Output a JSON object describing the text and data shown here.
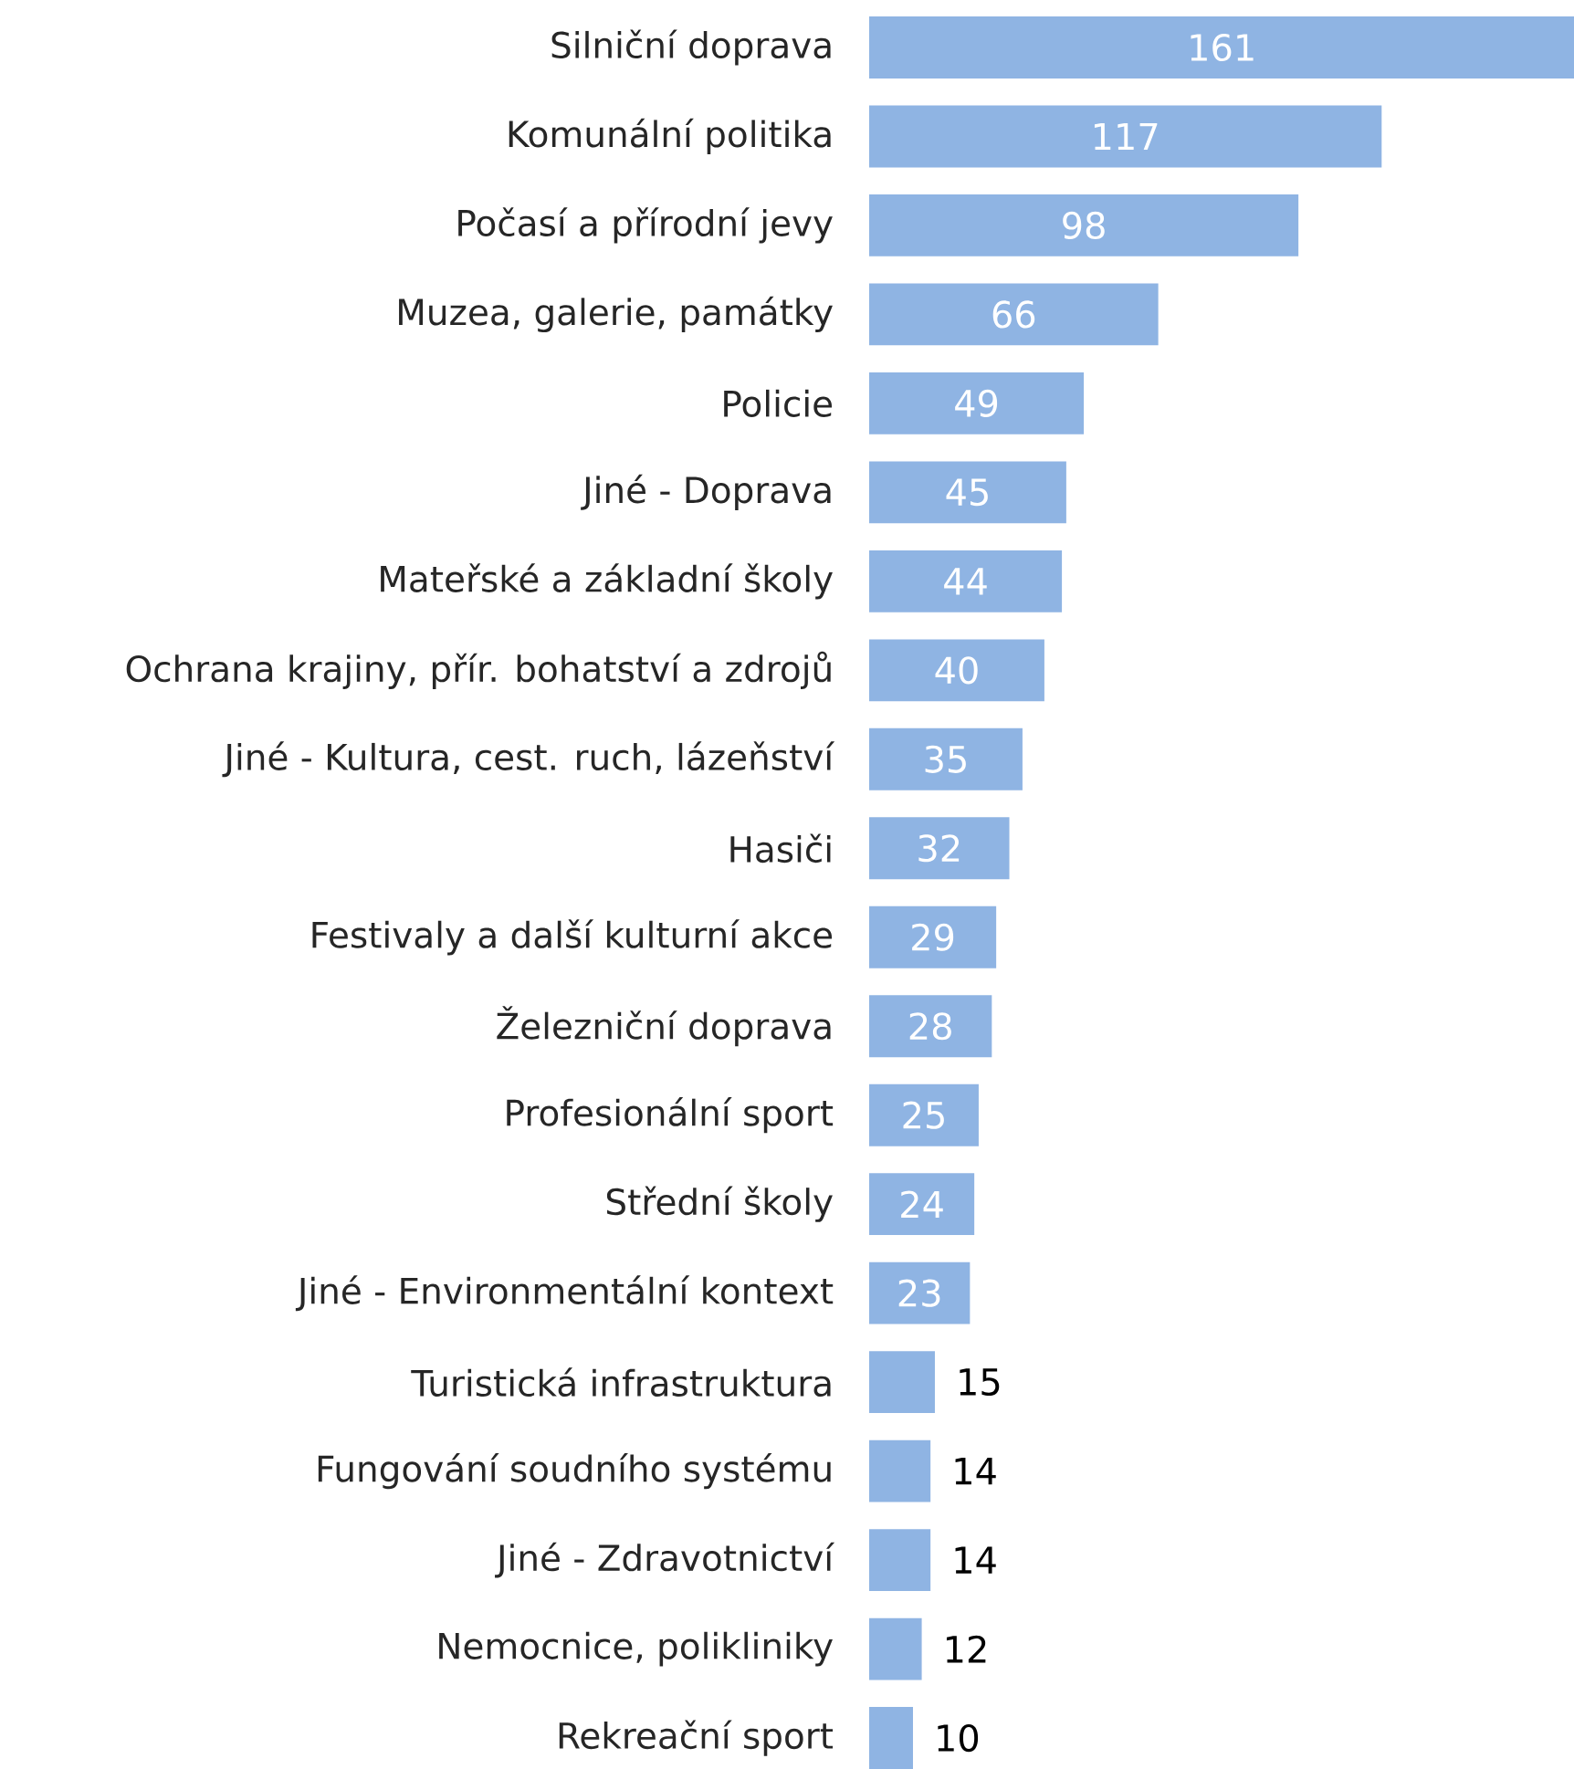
{
  "chart_data": {
    "type": "bar",
    "orientation": "horizontal",
    "data_labels": true,
    "color": "#8fb4e3",
    "categories": [
      "Silniční doprava",
      "Komunální politika",
      "Počasí a přírodní jevy",
      "Muzea, galerie, památky",
      "Policie",
      "Jiné - Doprava",
      "Mateřské a základní školy",
      "Ochrana krajiny, přír. bohatství a zdrojů",
      "Jiné - Kultura, cest. ruch, lázeňství",
      "Hasiči",
      "Festivaly a další kulturní akce",
      "Železniční doprava",
      "Profesionální sport",
      "Střední školy",
      "Jiné - Environmentální kontext",
      "Turistická infrastruktura",
      "Fungování soudního systému",
      "Jiné - Zdravotnictví",
      "Nemocnice, polikliniky",
      "Rekreační sport"
    ],
    "values": [
      161,
      117,
      98,
      66,
      49,
      45,
      44,
      40,
      35,
      32,
      29,
      28,
      25,
      24,
      23,
      15,
      14,
      14,
      12,
      10
    ]
  }
}
